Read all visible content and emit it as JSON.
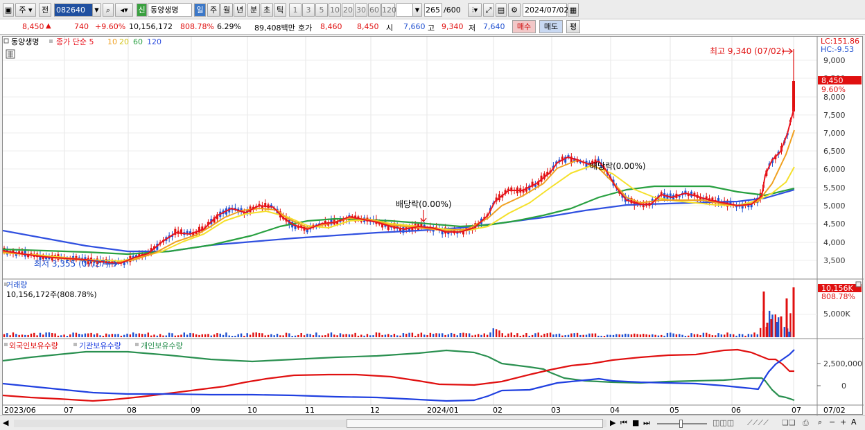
{
  "toolbar": {
    "market": "주",
    "prev": "전",
    "stock_code": "082640",
    "badge": "신",
    "stock_name": "동양생명",
    "periods": [
      "일",
      "주",
      "월",
      "년",
      "분",
      "초",
      "틱"
    ],
    "minutes": [
      "1",
      "3",
      "5",
      "10",
      "20",
      "30",
      "60",
      "120"
    ],
    "count_value": "265",
    "count_total": "/600",
    "date": "2024/07/02"
  },
  "quote": {
    "price": "8,450",
    "arrow": "▲",
    "change": "740",
    "change_pct": "+9.60%",
    "volume": "10,156,172",
    "volume_pct": "808.78%",
    "turnover_pct": "6.29%",
    "trade_value": "89,408백만",
    "bid_label": "호가",
    "bid": "8,460",
    "ask": "8,450",
    "open_label": "시",
    "open": "7,660",
    "high_label": "고",
    "high": "9,340",
    "low_label": "저",
    "low": "7,640",
    "buy_label": "매수",
    "sell_label": "매도",
    "avg_label": "평"
  },
  "price_panel": {
    "legend_name": "동양생명",
    "legend_ma_title": "종가 단순 5",
    "ma_labels": [
      "10",
      "20",
      "60",
      "120"
    ],
    "lc": "LC:151.86",
    "hc": "HC:-9.53",
    "y_ticks": [
      "9,000",
      "8,500",
      "8,000",
      "7,500",
      "7,000",
      "6,500",
      "6,000",
      "5,500",
      "5,000",
      "4,500",
      "4,000",
      "3,500"
    ],
    "last_price_tag": "8,450",
    "last_pct_tag": "9.60%",
    "high_annotation": "최고 9,340 (07/02)",
    "low_annotation": "최저 3,355 (07/27)",
    "dividend1": "배당락(0.00%)",
    "dividend2": "배당락(0.00%)"
  },
  "volume_panel": {
    "title": "거래량",
    "summary": "10,156,172주(808.78%)",
    "tick": "5,000K",
    "tag": "10,156K",
    "tag_pct": "808.78%"
  },
  "holdings_panel": {
    "legend": [
      "외국인보유수량",
      "기관보유수량",
      "개인보유수량"
    ],
    "ticks": [
      "2,500,000",
      "0"
    ]
  },
  "x_axis": [
    "2023/06",
    "07",
    "08",
    "09",
    "10",
    "11",
    "12",
    "2024/01",
    "02",
    "03",
    "04",
    "05",
    "06",
    "07",
    "07/02"
  ],
  "colors": {
    "ma5": "#e8141e",
    "ma10": "#f0a020",
    "ma20": "#f5e02a",
    "ma60": "#28a040",
    "ma120": "#3050e0",
    "foreign": "#e01010",
    "institution": "#2a9050",
    "individual": "#2040e0",
    "up": "#e01010",
    "down": "#2050d0"
  }
}
